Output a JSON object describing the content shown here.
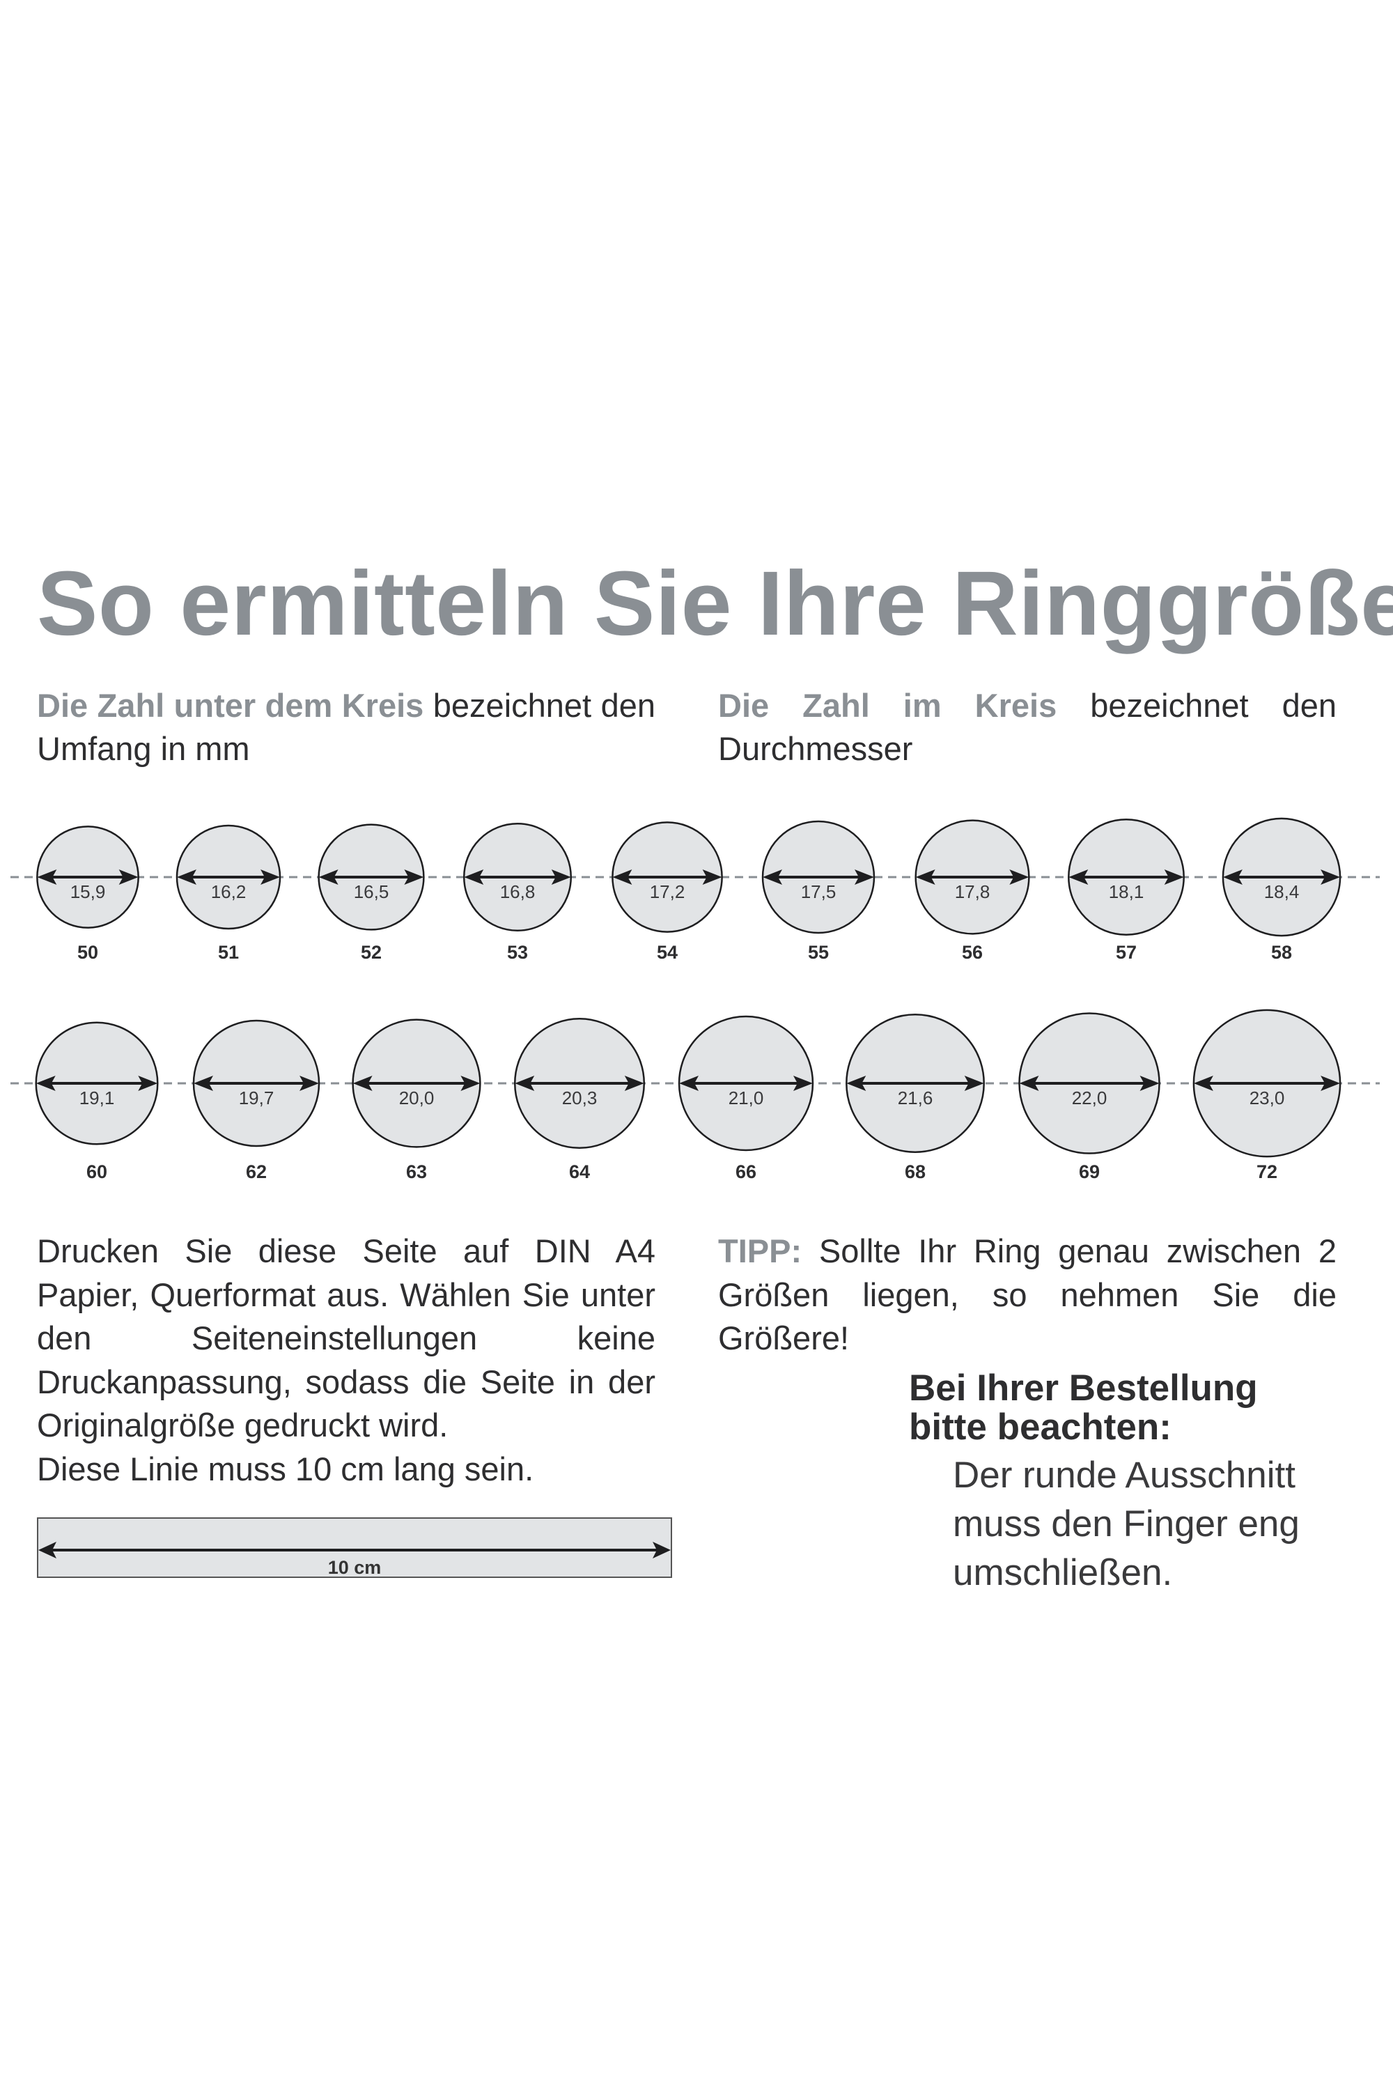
{
  "title": "So ermitteln Sie Ihre Ringgröße",
  "intro": {
    "left_accent": "Die Zahl unter dem Kreis",
    "left_rest": " bezeichnet den Umfang in mm",
    "right_accent": "Die Zahl im Kreis",
    "right_rest_1": " bezeichnet den",
    "right_rest_2": "Durchmesser"
  },
  "rings": {
    "row1": [
      {
        "diameter": "15,9",
        "size": "50"
      },
      {
        "diameter": "16,2",
        "size": "51"
      },
      {
        "diameter": "16,5",
        "size": "52"
      },
      {
        "diameter": "16,8",
        "size": "53"
      },
      {
        "diameter": "17,2",
        "size": "54"
      },
      {
        "diameter": "17,5",
        "size": "55"
      },
      {
        "diameter": "17,8",
        "size": "56"
      },
      {
        "diameter": "18,1",
        "size": "57"
      },
      {
        "diameter": "18,4",
        "size": "58"
      }
    ],
    "row2": [
      {
        "diameter": "19,1",
        "size": "60"
      },
      {
        "diameter": "19,7",
        "size": "62"
      },
      {
        "diameter": "20,0",
        "size": "63"
      },
      {
        "diameter": "20,3",
        "size": "64"
      },
      {
        "diameter": "21,0",
        "size": "66"
      },
      {
        "diameter": "21,6",
        "size": "68"
      },
      {
        "diameter": "22,0",
        "size": "69"
      },
      {
        "diameter": "23,0",
        "size": "72"
      }
    ]
  },
  "instructions": {
    "main": "Drucken Sie diese Seite auf DIN A4 Papier, Querformat aus. Wählen Sie unter den Seiteneinstellungen keine Druckanpassung, sodass die Seite in der Originalgröße gedruckt wird.",
    "last": "Diese Linie muss 10 cm lang sein."
  },
  "ruler": {
    "label": "10 cm"
  },
  "tip": {
    "label": "TIPP:",
    "text": " Sollte Ihr Ring genau zwischen 2 Größen liegen, so nehmen Sie die Größere!"
  },
  "order_note": {
    "heading_1": "Bei Ihrer Bestellung",
    "heading_2": "bitte beachten:",
    "body_1": "Der runde Ausschnitt",
    "body_2": "muss den Finger eng",
    "body_3": "umschließen."
  },
  "colors": {
    "accent": "#8a8f94",
    "circle_fill": "#e2e4e6",
    "text": "#2e2e30"
  }
}
